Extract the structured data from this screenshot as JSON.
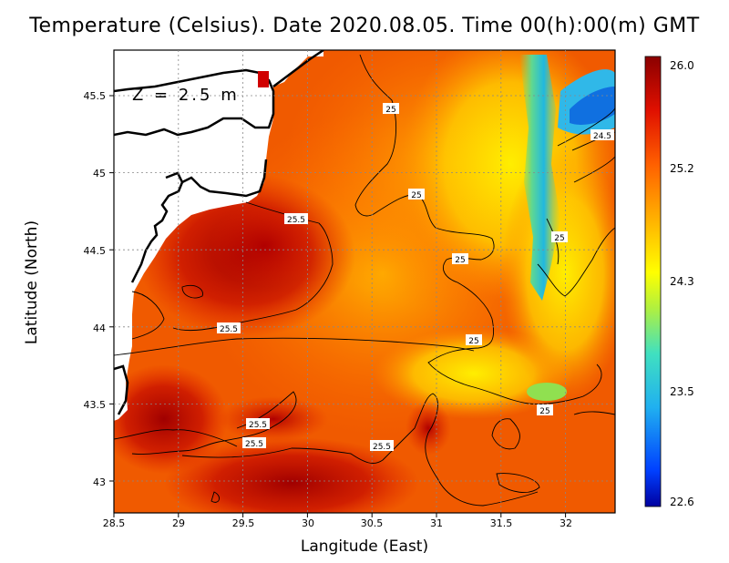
{
  "title": "Temperature (Celsius). Date 2020.08.05. Time 00(h):00(m) GMT",
  "depth_label": "Z = 2.5 m",
  "xlabel": "Langitude (East)",
  "ylabel": "Latitude (North)",
  "x_ticks": [
    "28.5",
    "29",
    "29.5",
    "30",
    "30.5",
    "31",
    "31.5",
    "32"
  ],
  "y_ticks": [
    "45.5",
    "45",
    "44.5",
    "44",
    "43.5",
    "43"
  ],
  "colorbar": {
    "ticks": [
      "26.0",
      "25.2",
      "24.3",
      "23.5",
      "22.6"
    ],
    "colors": [
      "#8b0000",
      "#d40000",
      "#ff3000",
      "#ff8000",
      "#ffcc00",
      "#e8f000",
      "#80e060",
      "#20c0e0",
      "#0060ff",
      "#0000a0"
    ]
  },
  "contour_labels": [
    "25",
    "24.5",
    "25",
    "25.5",
    "25",
    "25.5",
    "25",
    "25",
    "25.5",
    "25.5",
    "25.5"
  ],
  "chart_data": {
    "type": "heatmap",
    "variable": "Temperature (Celsius)",
    "date": "2020.08.05",
    "time": "00(h):00(m) GMT",
    "depth": "2.5 m",
    "xlim": [
      28.5,
      32.4
    ],
    "ylim": [
      42.8,
      45.8
    ],
    "color_range": [
      22.6,
      26.0
    ],
    "contour_levels": [
      24.5,
      25.0,
      25.5
    ]
  }
}
